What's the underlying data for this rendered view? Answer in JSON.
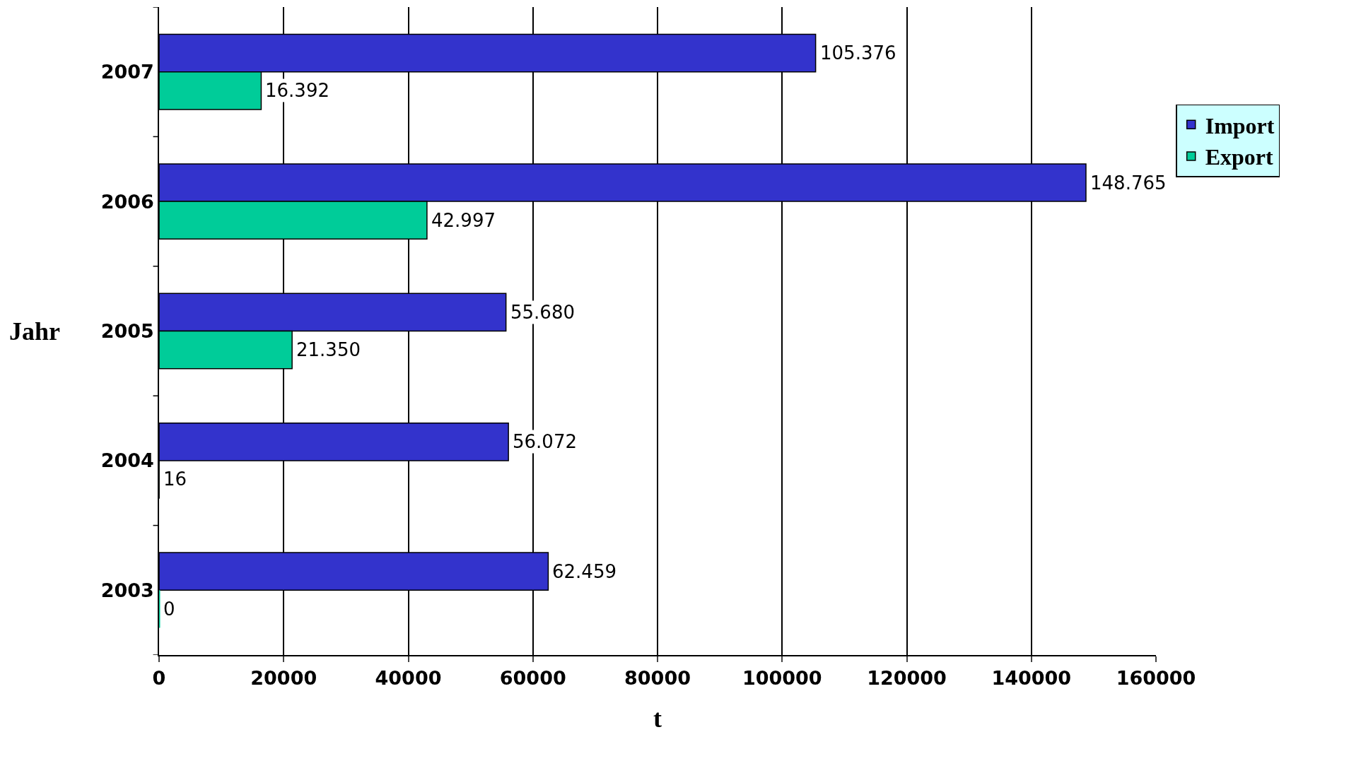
{
  "chart_data": {
    "type": "bar",
    "orientation": "horizontal",
    "xlabel": "t",
    "ylabel": "Jahr",
    "categories": [
      "2007",
      "2006",
      "2005",
      "2004",
      "2003"
    ],
    "series": [
      {
        "name": "Import",
        "color": "#3333cc",
        "values": [
          105376,
          148765,
          55680,
          56072,
          62459
        ],
        "value_labels": [
          "105.376",
          "148.765",
          "55.680",
          "56.072",
          "62.459"
        ]
      },
      {
        "name": "Export",
        "color": "#00cc99",
        "values": [
          16392,
          42997,
          21350,
          16,
          0
        ],
        "value_labels": [
          "16.392",
          "42.997",
          "21.350",
          "16",
          "0"
        ]
      }
    ],
    "xlim": [
      0,
      160000
    ],
    "xticks": [
      0,
      20000,
      40000,
      60000,
      80000,
      100000,
      120000,
      140000,
      160000
    ],
    "grid": "x",
    "legend": "right"
  }
}
